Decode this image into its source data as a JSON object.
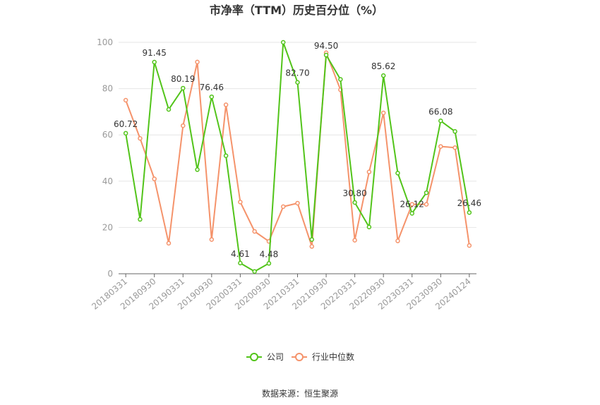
{
  "chart_data": {
    "type": "line",
    "title": "市净率（TTM）历史百分位（%）",
    "ylim": [
      0,
      100
    ],
    "yticks": [
      0,
      20,
      40,
      60,
      80,
      100
    ],
    "xtick_labels": [
      "20180331",
      "20180930",
      "20190331",
      "20190930",
      "20200331",
      "20200930",
      "20210331",
      "20210930",
      "20220331",
      "20220930",
      "20230331",
      "20230930",
      "20240124"
    ],
    "grid": true,
    "legend_position": "bottom",
    "series": [
      {
        "name": "公司",
        "color": "#52c41a",
        "values": [
          60.72,
          23.5,
          91.45,
          71.0,
          80.19,
          45.0,
          76.46,
          51.0,
          4.61,
          1.0,
          4.48,
          100,
          82.7,
          14.8,
          94.5,
          84.0,
          30.8,
          20.2,
          85.62,
          43.5,
          26.12,
          35.0,
          66.08,
          61.5,
          26.46
        ]
      },
      {
        "name": "行业中位数",
        "color": "#f5936b",
        "values": [
          75.0,
          58.5,
          41.0,
          13.2,
          64.0,
          91.5,
          14.8,
          73.0,
          31.0,
          18.3,
          14.0,
          29.0,
          30.5,
          11.8,
          95.5,
          79.5,
          14.5,
          44.0,
          69.5,
          14.2,
          30.0,
          30.0,
          55.0,
          54.5,
          12.2
        ]
      }
    ],
    "data_labels": [
      {
        "index": 0,
        "text": "60.72"
      },
      {
        "index": 2,
        "text": "91.45"
      },
      {
        "index": 4,
        "text": "80.19"
      },
      {
        "index": 6,
        "text": "76.46"
      },
      {
        "index": 8,
        "text": "4.61"
      },
      {
        "index": 10,
        "text": "4.48"
      },
      {
        "index": 12,
        "text": "82.70"
      },
      {
        "index": 14,
        "text": "94.50"
      },
      {
        "index": 16,
        "text": "30.80"
      },
      {
        "index": 18,
        "text": "85.62"
      },
      {
        "index": 20,
        "text": "26.12"
      },
      {
        "index": 22,
        "text": "66.08"
      },
      {
        "index": 24,
        "text": "26.46"
      }
    ]
  },
  "legend": {
    "company": "公司",
    "industry": "行业中位数"
  },
  "source": "数据来源：恒生聚源"
}
